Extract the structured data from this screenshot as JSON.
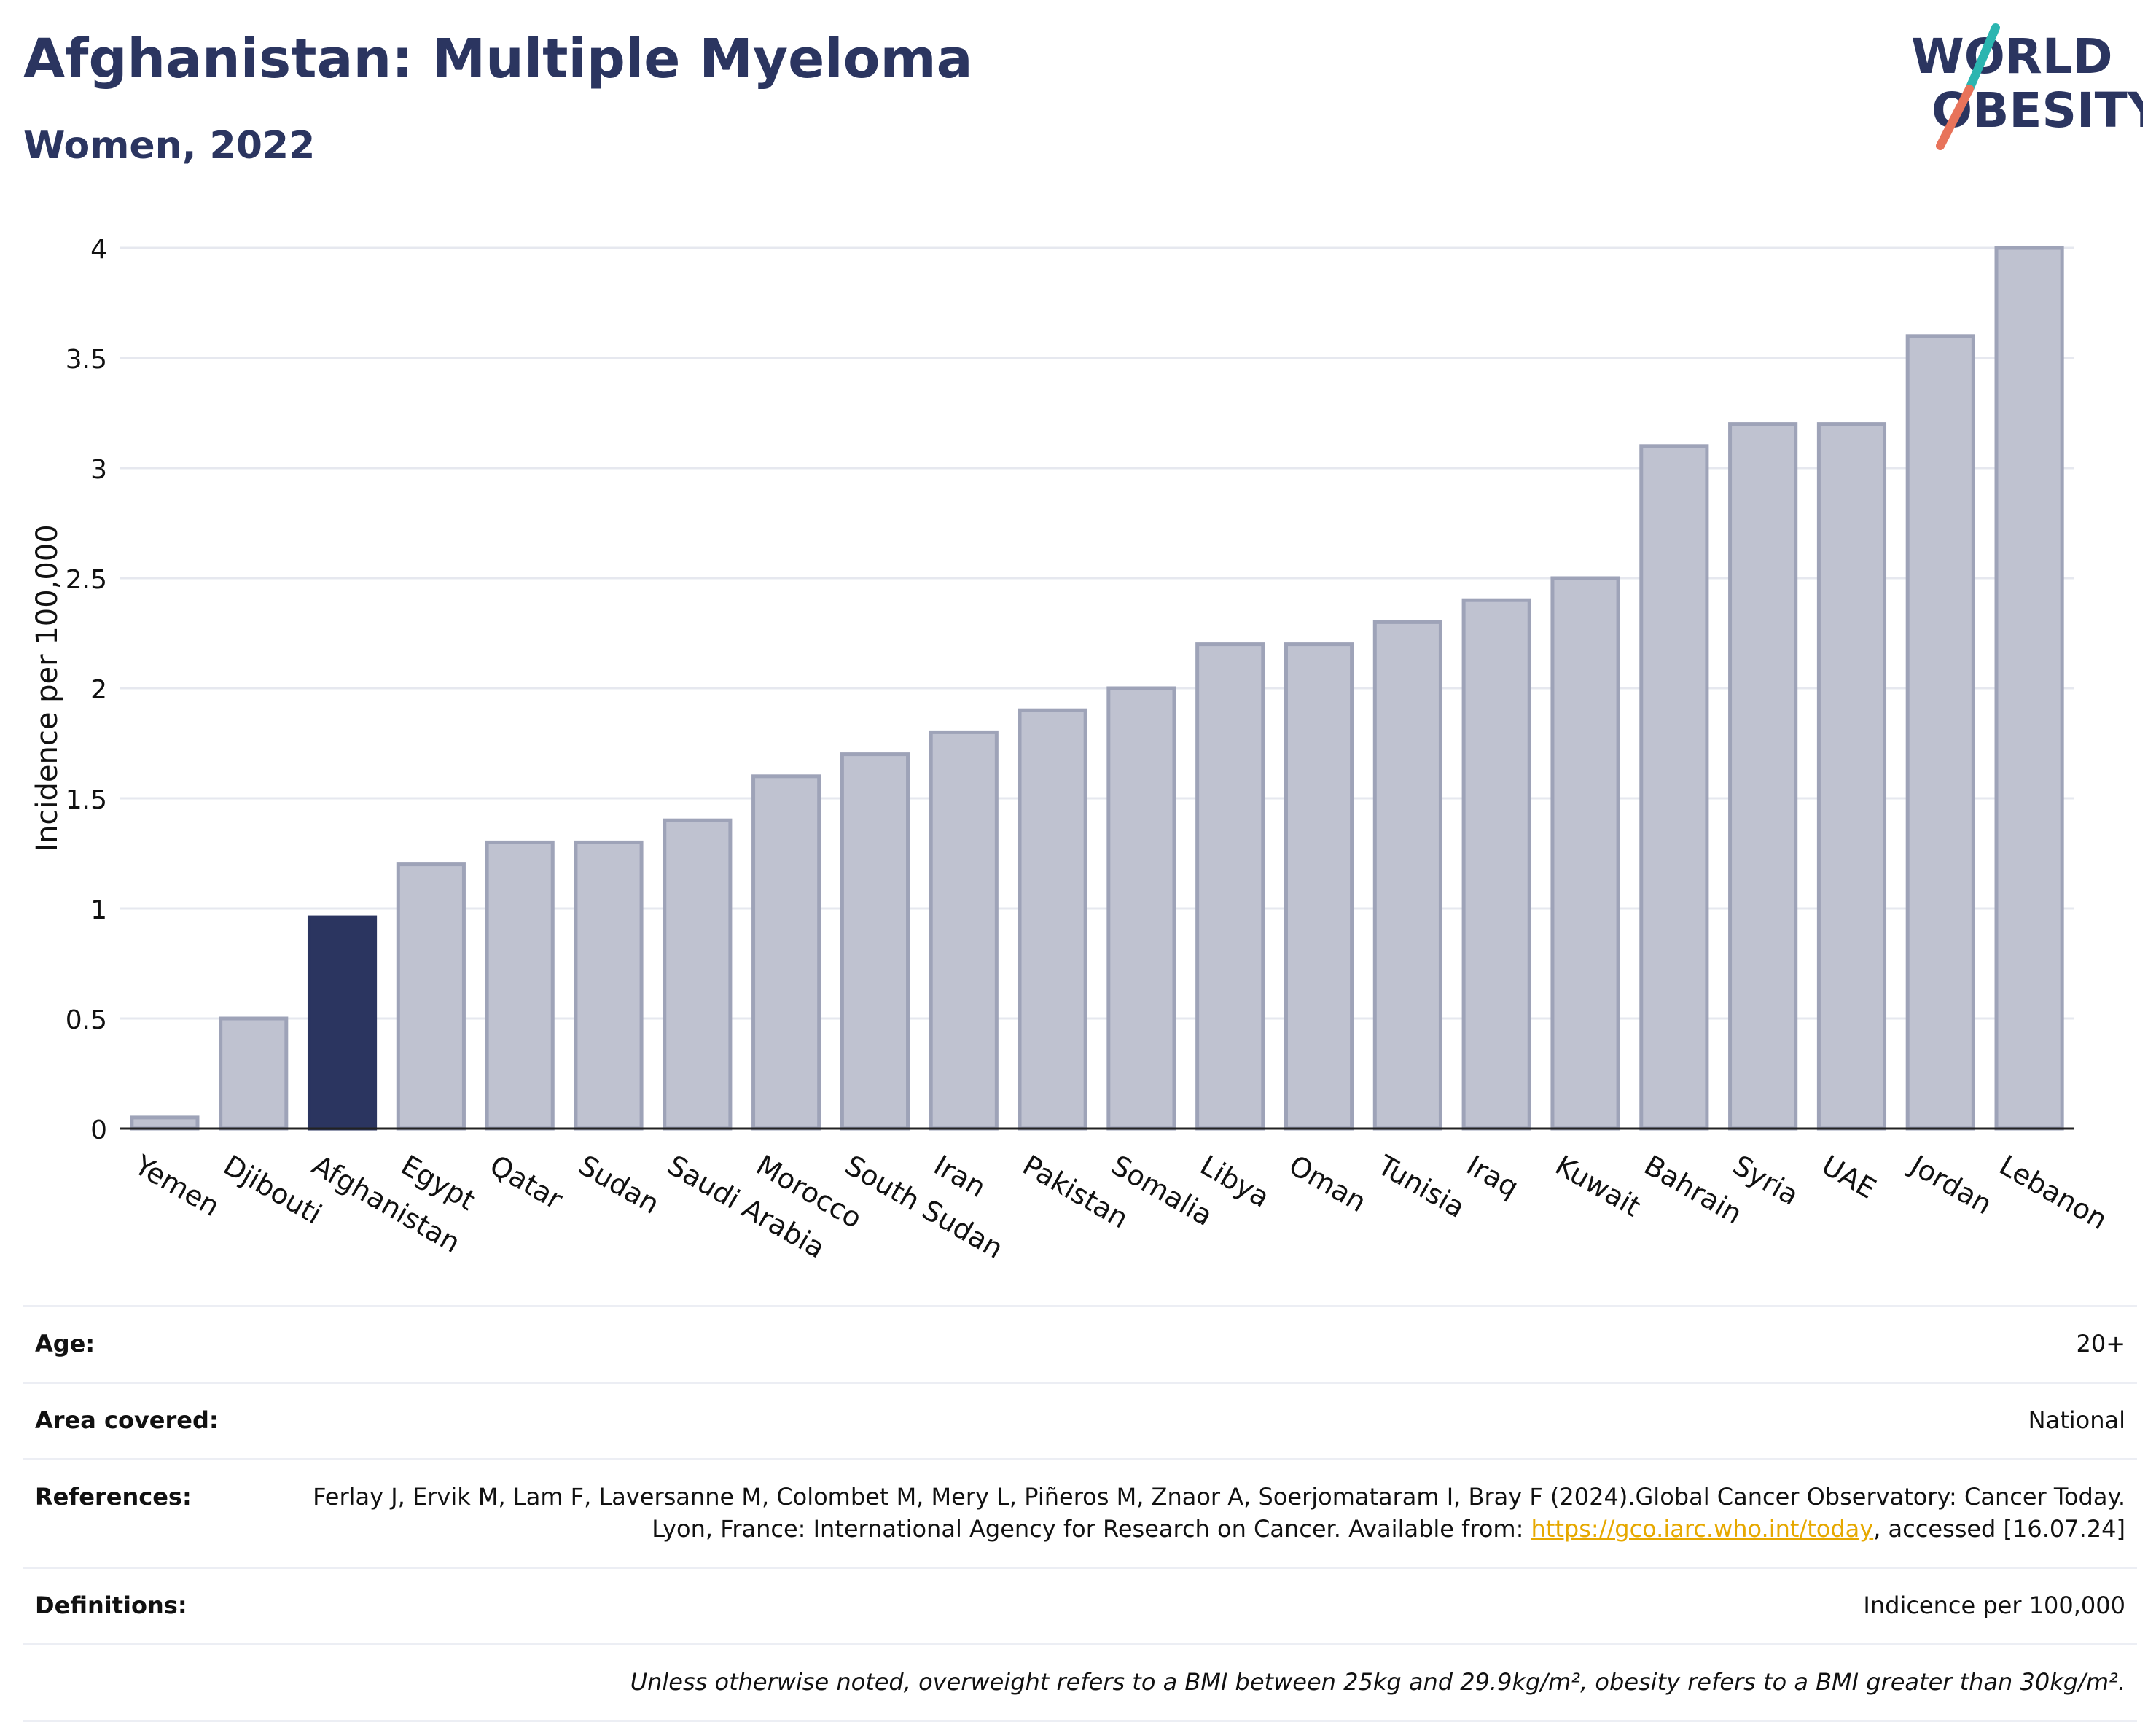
{
  "title": "Afghanistan: Multiple Myeloma",
  "subtitle": "Women, 2022",
  "logo": {
    "line1": "WORLD",
    "line2": "OBESITY",
    "colors": {
      "navy": "#2b3560",
      "teal": "#2bb5b0",
      "coral": "#e8735a"
    }
  },
  "chart_data": {
    "type": "bar",
    "ylabel": "Incidence per 100,000",
    "xlabel": "",
    "ylim": [
      0,
      4
    ],
    "yticks": [
      0,
      0.5,
      1,
      1.5,
      2,
      2.5,
      3,
      3.5,
      4
    ],
    "ytick_labels": [
      "0",
      "0.5",
      "1",
      "1.5",
      "2",
      "2.5",
      "3",
      "3.5",
      "4"
    ],
    "grid": true,
    "highlight": "Afghanistan",
    "colors": {
      "bar": "#bfc2d0",
      "bar_border": "#9ea3b8",
      "highlight": "#2b3560"
    },
    "categories": [
      "Yemen",
      "Djibouti",
      "Afghanistan",
      "Egypt",
      "Qatar",
      "Sudan",
      "Saudi Arabia",
      "Morocco",
      "South Sudan",
      "Iran",
      "Pakistan",
      "Somalia",
      "Libya",
      "Oman",
      "Tunisia",
      "Iraq",
      "Kuwait",
      "Bahrain",
      "Syria",
      "UAE",
      "Jordan",
      "Lebanon"
    ],
    "values": [
      0.05,
      0.5,
      0.96,
      1.2,
      1.3,
      1.3,
      1.4,
      1.6,
      1.7,
      1.8,
      1.9,
      2.0,
      2.2,
      2.2,
      2.3,
      2.4,
      2.5,
      3.1,
      3.2,
      3.2,
      3.6,
      4.0
    ]
  },
  "meta": {
    "age_label": "Age:",
    "age_value": "20+",
    "area_label": "Area covered:",
    "area_value": "National",
    "references_label": "References:",
    "references_text_before": "Ferlay J, Ervik M, Lam F, Laversanne M, Colombet M, Mery L, Piñeros M, Znaor A, Soerjomataram I, Bray F (2024).Global Cancer Observatory: Cancer Today. Lyon, France: International Agency for Research on Cancer. Available from: ",
    "references_link": "https://gco.iarc.who.int/today",
    "references_text_after": ", accessed [16.07.24]",
    "definitions_label": "Definitions:",
    "definitions_value": "Indicence per 100,000",
    "note": "Unless otherwise noted, overweight refers to a BMI between 25kg and 29.9kg/m², obesity refers to a BMI greater than 30kg/m²."
  }
}
